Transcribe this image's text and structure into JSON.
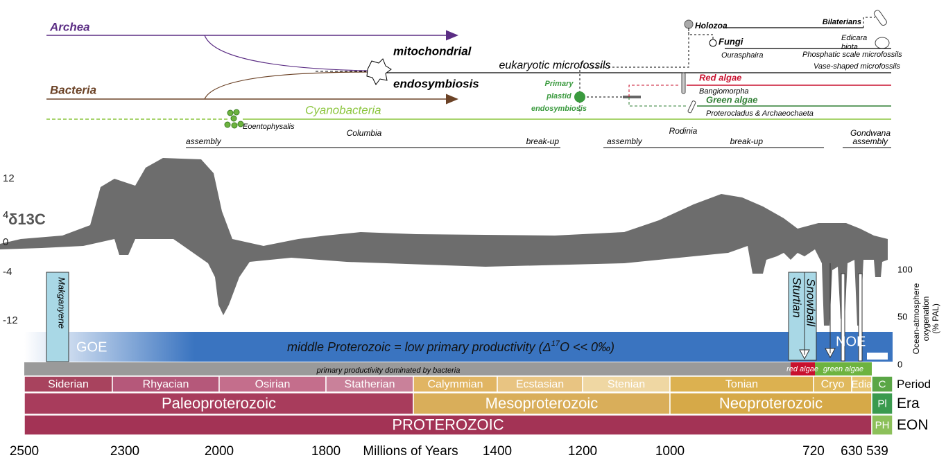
{
  "lineages": {
    "archea": "Archea",
    "bacteria": "Bacteria",
    "cyanobacteria": "Cyanobacteria",
    "eoentophysalis": "Eoentophysalis",
    "mitochondrial": "mitochondrial",
    "endosymbiosis": "endosymbiosis",
    "eukaryotic": "eukaryotic microfossils",
    "primary_plastid": [
      "Primary",
      "plastid",
      "endosymbiosis"
    ],
    "holozoa": "Holozoa",
    "bilaterians": "Bilaterians",
    "ediacara": [
      "Edicara",
      "biota"
    ],
    "fungi": "Fungi",
    "ourasphaira": "Ourasphaira",
    "phosphatic": "Phosphatic scale microfossils",
    "vase": "Vase-shaped microfossils",
    "red_algae": "Red algae",
    "bangiomorpha": "Bangiomorpha",
    "green_algae": "Green algae",
    "proterocladus": "Proterocladus & Archaeochaeta"
  },
  "supercontinents": {
    "columbia": "Columbia",
    "columbia_assembly": "assembly",
    "columbia_breakup": "break-up",
    "rodinia": "Rodinia",
    "rodinia_assembly": "assembly",
    "rodinia_breakup": "break-up",
    "gondwana": "Gondwana",
    "gondwana_assembly": "assembly"
  },
  "d13c": {
    "label": "δ13C",
    "ticks": [
      12,
      4,
      0,
      -4,
      -12
    ]
  },
  "oxygenation": {
    "label": [
      "Ocean-atmosphere",
      "oxygenation",
      "(% PAL)"
    ],
    "ticks": [
      100,
      50,
      0
    ]
  },
  "events": {
    "makganyene": "Makganyene",
    "goe": "GOE",
    "noe": "NOE",
    "sturtian": [
      "Sturtian",
      "Snowball"
    ],
    "middle": [
      "middle Proterozoic = low primary productivity (Δ",
      "17",
      "O << 0‰)"
    ],
    "bacteria_productivity": "primary productivity dominated by bacteria",
    "red_algae": "red algae",
    "green_algae": "green algae"
  },
  "timescale": {
    "periods": [
      "Siderian",
      "Rhyacian",
      "Osirian",
      "Statherian",
      "Calymmian",
      "Ecstasian",
      "Stenian",
      "Tonian",
      "Cryo",
      "Edia",
      "C"
    ],
    "eras": [
      "Paleoproterozoic",
      "Mesoproterozoic",
      "Neoproterozoic",
      "Pl"
    ],
    "eons": [
      "PROTEROZOIC",
      "PH"
    ],
    "row_labels": [
      "Period",
      "Era",
      "EON"
    ]
  },
  "x_axis": {
    "label": "Millions of Years",
    "ticks": [
      2500,
      2300,
      2000,
      1800,
      1400,
      1200,
      1000,
      720,
      630,
      539
    ]
  }
}
